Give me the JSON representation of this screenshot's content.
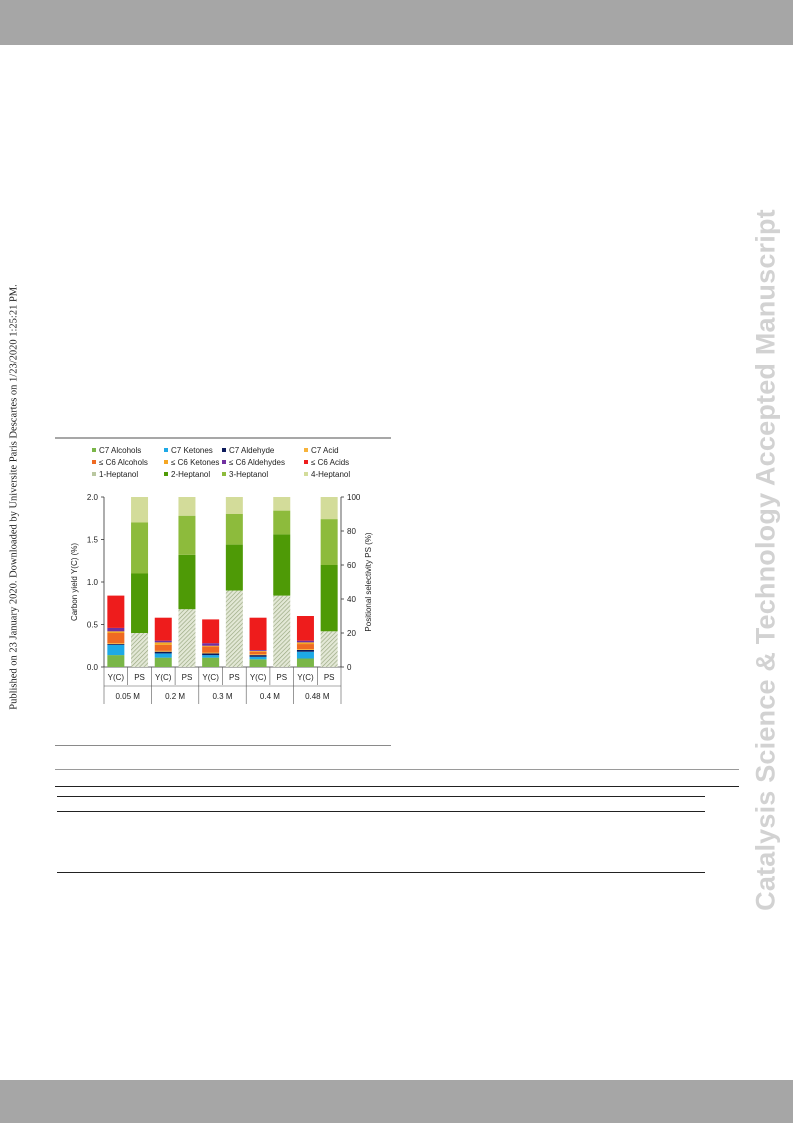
{
  "side_note": "Published on 23 January 2020. Downloaded by Universite Paris Descartes on 1/23/2020 1:25:21 PM.",
  "watermark": "Catalysis Science & Technology Accepted Manuscript",
  "chart_data": {
    "type": "bar",
    "stacked": true,
    "title": "",
    "ylabel": "Carbon yield Y(C) (%)",
    "y2label": "Positional selectivity PS (%)",
    "ylim": [
      0,
      2.0
    ],
    "y2lim": [
      0,
      100
    ],
    "yticks": [
      "0.0",
      "0.5",
      "1.0",
      "1.5",
      "2.0"
    ],
    "y2ticks": [
      "0",
      "20",
      "40",
      "60",
      "80",
      "100"
    ],
    "groups": [
      "0.05 M",
      "0.2 M",
      "0.3 M",
      "0.4 M",
      "0.48 M"
    ],
    "bar_labels": [
      "Y(C)",
      "PS"
    ],
    "grid": false,
    "legend_position": "top",
    "legend": [
      {
        "label": "C7 Alcohols",
        "color": "#7ab648"
      },
      {
        "label": "C7 Ketones",
        "color": "#1ea9e6"
      },
      {
        "label": "C7 Aldehyde",
        "color": "#0d1b5c"
      },
      {
        "label": "C7 Acid",
        "color": "#f7b33b"
      },
      {
        "label": "≤ C6 Alcohols",
        "color": "#ef6a22"
      },
      {
        "label": "≤ C6 Ketones",
        "color": "#f5a623"
      },
      {
        "label": "≤ C6 Aldehydes",
        "color": "#7030a0"
      },
      {
        "label": "≤ C6 Acids",
        "color": "#ee1c1c"
      },
      {
        "label": "1-Heptanol",
        "color": "#b9c7a0"
      },
      {
        "label": "2-Heptanol",
        "color": "#4e9a06"
      },
      {
        "label": "3-Heptanol",
        "color": "#8dbb3c"
      },
      {
        "label": "4-Heptanol",
        "color": "#d3dc9a"
      }
    ],
    "yield_series": [
      {
        "name": "C7 Alcohols",
        "values": [
          0.14,
          0.11,
          0.11,
          0.09,
          0.1
        ]
      },
      {
        "name": "C7 Ketones",
        "values": [
          0.12,
          0.05,
          0.03,
          0.03,
          0.08
        ]
      },
      {
        "name": "C7 Aldehyde",
        "values": [
          0.01,
          0.02,
          0.02,
          0.02,
          0.02
        ]
      },
      {
        "name": "C7 Acid",
        "values": [
          0.01,
          0.01,
          0.01,
          0.01,
          0.01
        ]
      },
      {
        "name": "≤ C6 Alcohols",
        "values": [
          0.12,
          0.07,
          0.07,
          0.03,
          0.06
        ]
      },
      {
        "name": "≤ C6 Ketones",
        "values": [
          0.02,
          0.03,
          0.01,
          0.01,
          0.02
        ]
      },
      {
        "name": "≤ C6 Aldehydes",
        "values": [
          0.04,
          0.02,
          0.03,
          0.01,
          0.02
        ]
      },
      {
        "name": "≤ C6 Acids",
        "values": [
          0.38,
          0.27,
          0.28,
          0.38,
          0.29
        ]
      }
    ],
    "selectivity_series": [
      {
        "name": "1-Heptanol",
        "values": [
          20,
          34,
          45,
          42,
          21
        ]
      },
      {
        "name": "2-Heptanol",
        "values": [
          35,
          32,
          27,
          36,
          39
        ]
      },
      {
        "name": "3-Heptanol",
        "values": [
          30,
          23,
          18,
          14,
          27
        ]
      },
      {
        "name": "4-Heptanol",
        "values": [
          15,
          11,
          10,
          8,
          13
        ]
      }
    ]
  }
}
